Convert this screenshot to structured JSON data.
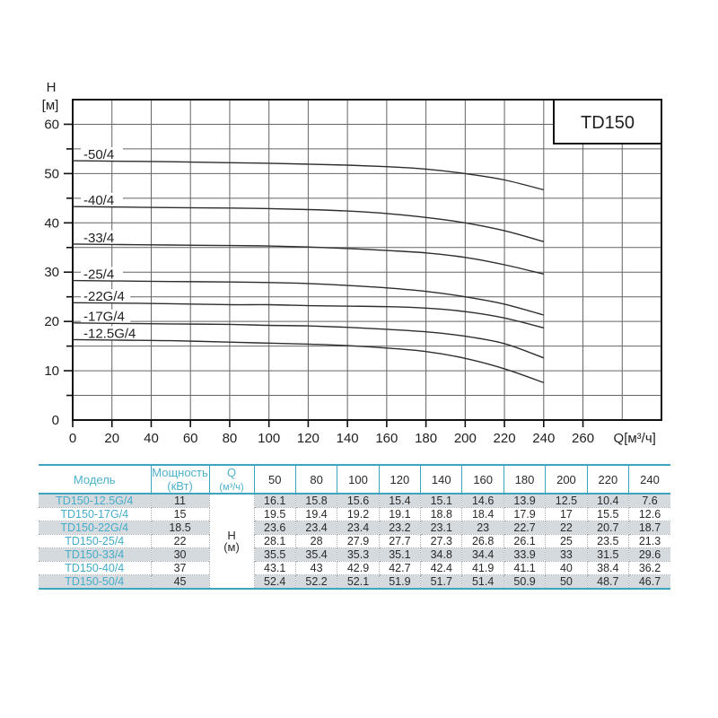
{
  "title_box": "TD150",
  "axes": {
    "y_label_line1": "H",
    "y_label_line2": "[м]",
    "x_unit_label": "Q[м³/ч]",
    "x_tick_labels": [
      0,
      20,
      40,
      60,
      80,
      100,
      120,
      140,
      160,
      180,
      200,
      220,
      240,
      260
    ],
    "y_tick_labels": [
      0,
      10,
      20,
      30,
      40,
      50,
      60
    ]
  },
  "chart_data": {
    "type": "line",
    "title": "TD150",
    "xlabel": "Q[м³/ч]",
    "ylabel": "H [м]",
    "xlim": [
      0,
      300
    ],
    "ylim": [
      0,
      65
    ],
    "grid": true,
    "x": [
      50,
      80,
      100,
      120,
      140,
      160,
      180,
      200,
      220,
      240
    ],
    "series": [
      {
        "name": "-50/4",
        "values": [
          52.4,
          52.2,
          52.1,
          51.9,
          51.7,
          51.4,
          50.9,
          50,
          48.7,
          46.7
        ]
      },
      {
        "name": "-40/4",
        "values": [
          43.1,
          43,
          42.9,
          42.7,
          42.4,
          41.9,
          41.1,
          40,
          38.4,
          36.2
        ]
      },
      {
        "name": "-33/4",
        "values": [
          35.5,
          35.4,
          35.3,
          35.1,
          34.8,
          34.4,
          33.9,
          33,
          31.5,
          29.6
        ]
      },
      {
        "name": "-25/4",
        "values": [
          28.1,
          28,
          27.9,
          27.7,
          27.3,
          26.8,
          26.1,
          25,
          23.5,
          21.3
        ]
      },
      {
        "name": "-22G/4",
        "values": [
          23.6,
          23.4,
          23.4,
          23.2,
          23.1,
          23,
          22.7,
          22,
          20.7,
          18.7
        ]
      },
      {
        "name": "-17G/4",
        "values": [
          19.5,
          19.4,
          19.2,
          19.1,
          18.8,
          18.4,
          17.9,
          17,
          15.5,
          12.6
        ]
      },
      {
        "name": "-12.5G/4",
        "values": [
          16.1,
          15.8,
          15.6,
          15.4,
          15.1,
          14.6,
          13.9,
          12.5,
          10.4,
          7.6
        ]
      }
    ]
  },
  "table": {
    "headers": {
      "model": "Модель",
      "power_line1": "Мощность",
      "power_line2": "(кВт)",
      "q_line1": "Q",
      "q_line2": "(м³/ч)",
      "flow_values": [
        "50",
        "80",
        "100",
        "120",
        "140",
        "160",
        "180",
        "200",
        "220",
        "240"
      ]
    },
    "merged_cell": {
      "line1": "Н",
      "line2": "(м)"
    },
    "rows": [
      {
        "model": "TD150-12.5G/4",
        "power": "11",
        "values": [
          "16.1",
          "15.8",
          "15.6",
          "15.4",
          "15.1",
          "14.6",
          "13.9",
          "12.5",
          "10.4",
          "7.6"
        ]
      },
      {
        "model": "TD150-17G/4",
        "power": "15",
        "values": [
          "19.5",
          "19.4",
          "19.2",
          "19.1",
          "18.8",
          "18.4",
          "17.9",
          "17",
          "15.5",
          "12.6"
        ]
      },
      {
        "model": "TD150-22G/4",
        "power": "18.5",
        "values": [
          "23.6",
          "23.4",
          "23.4",
          "23.2",
          "23.1",
          "23",
          "22.7",
          "22",
          "20.7",
          "18.7"
        ]
      },
      {
        "model": "TD150-25/4",
        "power": "22",
        "values": [
          "28.1",
          "28",
          "27.9",
          "27.7",
          "27.3",
          "26.8",
          "26.1",
          "25",
          "23.5",
          "21.3"
        ]
      },
      {
        "model": "TD150-33/4",
        "power": "30",
        "values": [
          "35.5",
          "35.4",
          "35.3",
          "35.1",
          "34.8",
          "34.4",
          "33.9",
          "33",
          "31.5",
          "29.6"
        ]
      },
      {
        "model": "TD150-40/4",
        "power": "37",
        "values": [
          "43.1",
          "43",
          "42.9",
          "42.7",
          "42.4",
          "41.9",
          "41.1",
          "40",
          "38.4",
          "36.2"
        ]
      },
      {
        "model": "TD150-50/4",
        "power": "45",
        "values": [
          "52.4",
          "52.2",
          "52.1",
          "51.9",
          "51.7",
          "51.4",
          "50.9",
          "50",
          "48.7",
          "46.7"
        ]
      }
    ]
  },
  "colors": {
    "teal_border": "#3da5be",
    "teal_text": "#4db1cc",
    "stripe_bg": "#d4dade",
    "grid_line": "#646464",
    "curve": "#2e2e2e"
  }
}
